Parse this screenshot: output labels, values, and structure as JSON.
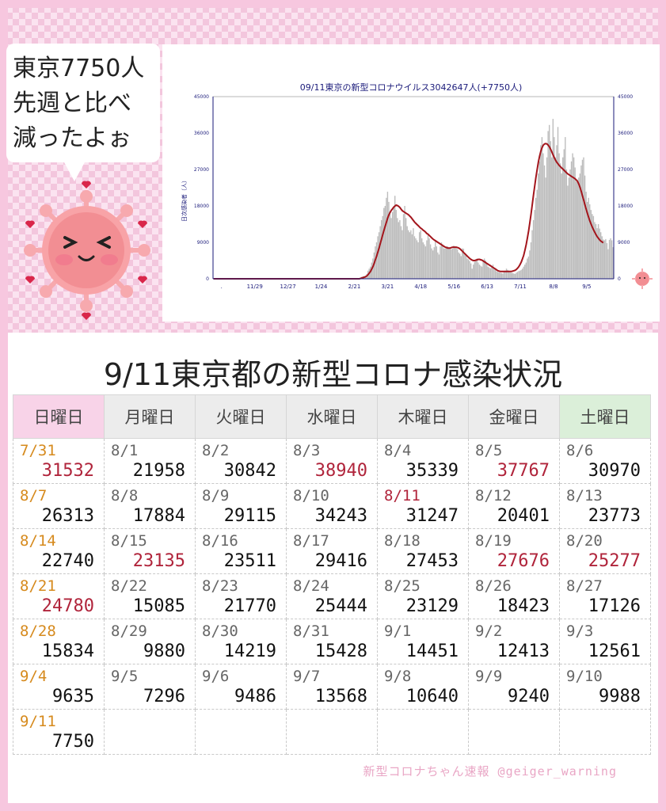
{
  "bubble": {
    "lines": [
      "東京7750人",
      "先週と比べ",
      "減ったよぉ"
    ]
  },
  "chart_data": {
    "type": "bar",
    "title": "09/11東京の新型コロナウイルス3042647人(+7750人)",
    "ylabel": "日次感染者（人）",
    "ylim": [
      0,
      45000
    ],
    "y_ticks": [
      0,
      9000,
      18000,
      27000,
      36000,
      45000
    ],
    "x_tick_labels": [
      ".",
      "11/29",
      "12/27",
      "1/24",
      "2/21",
      "3/21",
      "4/18",
      "5/16",
      "6/13",
      "7/11",
      "8/8",
      "9/5"
    ],
    "series": [
      {
        "type": "bar",
        "values": [
          0,
          0,
          0,
          0,
          0,
          0,
          0,
          0,
          0,
          0,
          0,
          0,
          0,
          0,
          0,
          0,
          0,
          0,
          0,
          0,
          0,
          0,
          0,
          0,
          0,
          0,
          0,
          0,
          0,
          0,
          0,
          0,
          0,
          0,
          0,
          0,
          0,
          0,
          0,
          0,
          0,
          0,
          0,
          0,
          0,
          0,
          0,
          0,
          0,
          0,
          0,
          0,
          0,
          0,
          0,
          0,
          0,
          0,
          0,
          0,
          0,
          0,
          0,
          0,
          0,
          0,
          0,
          0,
          0,
          0,
          0,
          0,
          0,
          0,
          0,
          0,
          0,
          0,
          0,
          0,
          0,
          0,
          0,
          0,
          0,
          0,
          0,
          0,
          0,
          0,
          0,
          0,
          0,
          0,
          0,
          0,
          0,
          0,
          0,
          0,
          0,
          0,
          0,
          0,
          0,
          0,
          0,
          0,
          0,
          0,
          0,
          0,
          0,
          0,
          0,
          0,
          0,
          0,
          0,
          0,
          300,
          500,
          600,
          700,
          800,
          1200,
          2000,
          2500,
          3000,
          4000,
          5000,
          6500,
          8000,
          9000,
          10500,
          11500,
          13000,
          14500,
          15500,
          17500,
          18000,
          20000,
          21500,
          19000,
          16000,
          15000,
          16500,
          17500,
          20500,
          17000,
          15000,
          14000,
          14500,
          13000,
          12000,
          16000,
          18000,
          15000,
          13000,
          12000,
          11500,
          12000,
          11000,
          12500,
          10500,
          10000,
          9500,
          9000,
          11500,
          12000,
          10000,
          9000,
          8500,
          8000,
          9500,
          11000,
          10000,
          8500,
          7500,
          7000,
          7800,
          9500,
          8000,
          6500,
          6000,
          8000,
          9000,
          8500,
          7500,
          7500,
          8000,
          8000,
          7800,
          7600,
          7300,
          7500,
          8200,
          8000,
          7600,
          7300,
          6500,
          6200,
          5600,
          7500,
          7400,
          6400,
          5700,
          5000,
          4800,
          4400,
          3800,
          2500,
          3500,
          4200,
          4500,
          5000,
          4000,
          3500,
          3200,
          3000,
          4200,
          5000,
          4500,
          3800,
          3000,
          2800,
          2600,
          2800,
          3500,
          2500,
          2200,
          1800,
          1700,
          1600,
          1500,
          1400,
          1300,
          1800,
          2000,
          2500,
          2200,
          1800,
          1600,
          1500,
          1400,
          1300,
          1200,
          1500,
          1700,
          1900,
          2000,
          2200,
          2500,
          3000,
          3500,
          4000,
          5000,
          5500,
          7000,
          9000,
          12000,
          14500,
          17000,
          20000,
          22000,
          26000,
          29000,
          33000,
          35000,
          31000,
          28000,
          25000,
          30000,
          36500,
          38000,
          34000,
          30000,
          39500,
          35000,
          30000,
          33000,
          37500,
          31000,
          28500,
          26000,
          30000,
          32000,
          35000,
          27000,
          23000,
          25000,
          27000,
          29000,
          31000,
          30000,
          27500,
          24000,
          24500,
          25000,
          26000,
          28000,
          29400,
          30000,
          25500,
          21500,
          19000,
          20000,
          18400,
          17000,
          16000,
          15500,
          14000,
          13500,
          12500,
          13500,
          12400,
          11500,
          10500,
          9700,
          9500,
          9800,
          8800,
          7300,
          9600,
          10000,
          9500,
          7800
        ]
      },
      {
        "type": "line",
        "name": "",
        "values": [
          0,
          0,
          0,
          0,
          0,
          0,
          0,
          0,
          0,
          0,
          0,
          0,
          0,
          0,
          0,
          0,
          0,
          0,
          0,
          0,
          0,
          0,
          0,
          0,
          0,
          0,
          0,
          0,
          0,
          0,
          0,
          0,
          0,
          0,
          0,
          0,
          0,
          0,
          0,
          0,
          0,
          0,
          0,
          0,
          0,
          0,
          0,
          0,
          0,
          0,
          0,
          0,
          0,
          0,
          0,
          0,
          0,
          0,
          0,
          0,
          0,
          0,
          0,
          0,
          0,
          0,
          0,
          0,
          0,
          0,
          0,
          0,
          0,
          0,
          0,
          0,
          0,
          0,
          0,
          0,
          0,
          0,
          0,
          0,
          0,
          0,
          0,
          0,
          0,
          0,
          0,
          0,
          0,
          0,
          0,
          0,
          0,
          0,
          0,
          0,
          0,
          0,
          0,
          0,
          0,
          0,
          0,
          0,
          0,
          0,
          0,
          0,
          0,
          0,
          0,
          0,
          0,
          0,
          0,
          0,
          100,
          200,
          300,
          400,
          500,
          700,
          1000,
          1400,
          1800,
          2400,
          3000,
          3800,
          4700,
          5600,
          6600,
          7600,
          8700,
          9800,
          10900,
          12000,
          13000,
          14000,
          15000,
          15800,
          16400,
          16900,
          17300,
          17700,
          18000,
          18200,
          18100,
          17900,
          17600,
          17200,
          16800,
          16600,
          16400,
          16200,
          16000,
          15800,
          15500,
          15200,
          14800,
          14400,
          14000,
          13700,
          13400,
          13100,
          12800,
          12500,
          12300,
          12000,
          11800,
          11500,
          11200,
          11000,
          10700,
          10400,
          10100,
          9800,
          9600,
          9400,
          9200,
          9000,
          8800,
          8600,
          8400,
          8200,
          8000,
          7800,
          7700,
          7600,
          7600,
          7600,
          7700,
          7800,
          7800,
          7800,
          7800,
          7700,
          7600,
          7400,
          7100,
          6800,
          6500,
          6200,
          5900,
          5600,
          5300,
          5000,
          4800,
          4600,
          4500,
          4500,
          4600,
          4700,
          4800,
          4800,
          4700,
          4600,
          4400,
          4200,
          4000,
          3800,
          3600,
          3400,
          3200,
          3000,
          2800,
          2600,
          2400,
          2200,
          2000,
          1900,
          1800,
          1800,
          1800,
          1800,
          1800,
          1800,
          1800,
          1800,
          1800,
          1800,
          1900,
          2000,
          2100,
          2300,
          2600,
          3000,
          3500,
          4100,
          4900,
          5800,
          7000,
          8400,
          10000,
          11800,
          13800,
          16000,
          18300,
          20600,
          22900,
          25000,
          27000,
          28800,
          30300,
          31500,
          32400,
          33000,
          33300,
          33400,
          33300,
          33000,
          32600,
          32000,
          31300,
          30600,
          29900,
          29300,
          28800,
          28400,
          28000,
          27700,
          27400,
          27100,
          26800,
          26500,
          26200,
          25900,
          25700,
          25500,
          25300,
          25100,
          24900,
          24700,
          24400,
          24000,
          23400,
          22600,
          21600,
          20500,
          19400,
          18300,
          17200,
          16200,
          15200,
          14300,
          13500,
          12800,
          12100,
          11500,
          10900,
          10400,
          10000,
          9600,
          9300,
          9100,
          8900
        ]
      }
    ]
  },
  "table": {
    "title": "9/11東京都の新型コロナ感染状況",
    "headers": [
      "日曜日",
      "月曜日",
      "火曜日",
      "水曜日",
      "木曜日",
      "金曜日",
      "土曜日"
    ],
    "rows": [
      [
        {
          "d": "7/31",
          "v": "31532",
          "dc": "orange",
          "vc": "red"
        },
        {
          "d": "8/1",
          "v": "21958"
        },
        {
          "d": "8/2",
          "v": "30842"
        },
        {
          "d": "8/3",
          "v": "38940",
          "vc": "red"
        },
        {
          "d": "8/4",
          "v": "35339"
        },
        {
          "d": "8/5",
          "v": "37767",
          "vc": "red"
        },
        {
          "d": "8/6",
          "v": "30970"
        }
      ],
      [
        {
          "d": "8/7",
          "v": "26313",
          "dc": "orange"
        },
        {
          "d": "8/8",
          "v": "17884"
        },
        {
          "d": "8/9",
          "v": "29115"
        },
        {
          "d": "8/10",
          "v": "34243"
        },
        {
          "d": "8/11",
          "v": "31247",
          "dc": "red"
        },
        {
          "d": "8/12",
          "v": "20401"
        },
        {
          "d": "8/13",
          "v": "23773"
        }
      ],
      [
        {
          "d": "8/14",
          "v": "22740",
          "dc": "orange"
        },
        {
          "d": "8/15",
          "v": "23135",
          "vc": "red"
        },
        {
          "d": "8/16",
          "v": "23511"
        },
        {
          "d": "8/17",
          "v": "29416"
        },
        {
          "d": "8/18",
          "v": "27453"
        },
        {
          "d": "8/19",
          "v": "27676",
          "vc": "red"
        },
        {
          "d": "8/20",
          "v": "25277",
          "vc": "red"
        }
      ],
      [
        {
          "d": "8/21",
          "v": "24780",
          "dc": "orange",
          "vc": "red"
        },
        {
          "d": "8/22",
          "v": "15085"
        },
        {
          "d": "8/23",
          "v": "21770"
        },
        {
          "d": "8/24",
          "v": "25444"
        },
        {
          "d": "8/25",
          "v": "23129"
        },
        {
          "d": "8/26",
          "v": "18423"
        },
        {
          "d": "8/27",
          "v": "17126"
        }
      ],
      [
        {
          "d": "8/28",
          "v": "15834",
          "dc": "orange"
        },
        {
          "d": "8/29",
          "v": "9880"
        },
        {
          "d": "8/30",
          "v": "14219"
        },
        {
          "d": "8/31",
          "v": "15428"
        },
        {
          "d": "9/1",
          "v": "14451"
        },
        {
          "d": "9/2",
          "v": "12413"
        },
        {
          "d": "9/3",
          "v": "12561"
        }
      ],
      [
        {
          "d": "9/4",
          "v": "9635",
          "dc": "orange"
        },
        {
          "d": "9/5",
          "v": "7296"
        },
        {
          "d": "9/6",
          "v": "9486"
        },
        {
          "d": "9/7",
          "v": "13568"
        },
        {
          "d": "9/8",
          "v": "10640"
        },
        {
          "d": "9/9",
          "v": "9240"
        },
        {
          "d": "9/10",
          "v": "9988"
        }
      ],
      [
        {
          "d": "9/11",
          "v": "7750",
          "dc": "orange"
        },
        {
          "d": "",
          "v": ""
        },
        {
          "d": "",
          "v": ""
        },
        {
          "d": "",
          "v": ""
        },
        {
          "d": "",
          "v": ""
        },
        {
          "d": "",
          "v": ""
        },
        {
          "d": "",
          "v": ""
        }
      ]
    ]
  },
  "credit": "新型コロナちゃん速報 @geiger_warning",
  "colors": {
    "bar": "#bdbdbd",
    "line": "#a3151c",
    "axis": "#1a1a7a",
    "title": "#1a1a7a",
    "red_value": "#b0243b",
    "sunday": "#d68a1d"
  }
}
